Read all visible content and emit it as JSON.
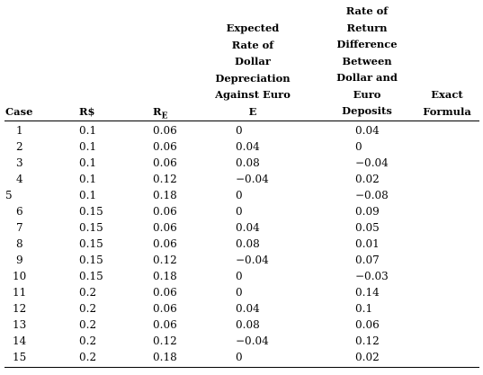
{
  "headers": {
    "case": "Case",
    "r_dollar": "R$",
    "r_euro_main": "R",
    "r_euro_sub": "E",
    "expected_depreciation": [
      "Expected",
      "Rate of",
      "Dollar",
      "Depreciation",
      "Against Euro",
      "E"
    ],
    "return_difference": [
      "Rate of",
      "Return",
      "Difference",
      "Between",
      "Dollar and",
      "Euro",
      "Deposits"
    ],
    "exact_formula": [
      "Exact",
      "Formula"
    ]
  },
  "rows": [
    {
      "case": "1",
      "r_dollar": "0.1",
      "r_euro": "0.06",
      "dep": "0",
      "diff": "0.04"
    },
    {
      "case": "2",
      "r_dollar": "0.1",
      "r_euro": "0.06",
      "dep": "0.04",
      "diff": "0"
    },
    {
      "case": "3",
      "r_dollar": "0.1",
      "r_euro": "0.06",
      "dep": "0.08",
      "diff": "−0.04"
    },
    {
      "case": "4",
      "r_dollar": "0.1",
      "r_euro": "0.12",
      "dep": "−0.04",
      "diff": "0.02"
    },
    {
      "case": "5",
      "r_dollar": "0.1",
      "r_euro": "0.18",
      "dep": "0",
      "diff": "−0.08"
    },
    {
      "case": "6",
      "r_dollar": "0.15",
      "r_euro": "0.06",
      "dep": "0",
      "diff": "0.09"
    },
    {
      "case": "7",
      "r_dollar": "0.15",
      "r_euro": "0.06",
      "dep": "0.04",
      "diff": "0.05"
    },
    {
      "case": "8",
      "r_dollar": "0.15",
      "r_euro": "0.06",
      "dep": "0.08",
      "diff": "0.01"
    },
    {
      "case": "9",
      "r_dollar": "0.15",
      "r_euro": "0.12",
      "dep": "−0.04",
      "diff": "0.07"
    },
    {
      "case": "10",
      "r_dollar": "0.15",
      "r_euro": "0.18",
      "dep": "0",
      "diff": "−0.03"
    },
    {
      "case": "11",
      "r_dollar": "0.2",
      "r_euro": "0.06",
      "dep": "0",
      "diff": "0.14"
    },
    {
      "case": "12",
      "r_dollar": "0.2",
      "r_euro": "0.06",
      "dep": "0.04",
      "diff": "0.1"
    },
    {
      "case": "13",
      "r_dollar": "0.2",
      "r_euro": "0.06",
      "dep": "0.08",
      "diff": "0.06"
    },
    {
      "case": "14",
      "r_dollar": "0.2",
      "r_euro": "0.12",
      "dep": "−0.04",
      "diff": "0.12"
    },
    {
      "case": "15",
      "r_dollar": "0.2",
      "r_euro": "0.18",
      "dep": "0",
      "diff": "0.02"
    }
  ]
}
